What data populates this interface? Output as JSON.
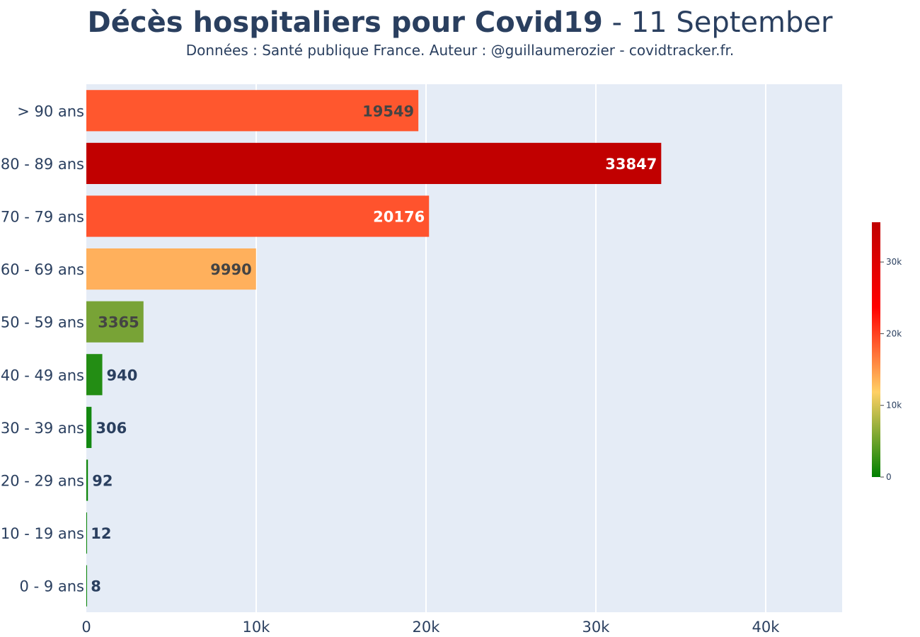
{
  "title": {
    "main": "Décès hospitaliers pour Covid19",
    "date": " - 11 September",
    "subtitle": "Données : Santé publique France. Auteur : @guillaumerozier - covidtracker.fr."
  },
  "colors": {
    "plot_background": "#e5ecf6",
    "grid": "#ffffff",
    "text": "#2a3f5f",
    "colorscale": [
      "#008000",
      "#ffd064",
      "#ff0000",
      "#c00000"
    ]
  },
  "chart_data": {
    "type": "bar",
    "orientation": "horizontal",
    "categories": [
      "> 90 ans",
      "80 - 89 ans",
      "70 - 79 ans",
      "60 - 69 ans",
      "50 - 59 ans",
      "40 - 49 ans",
      "30 - 39 ans",
      "20 - 29 ans",
      "10 - 19 ans",
      "0 - 9 ans"
    ],
    "values": [
      19549,
      33847,
      20176,
      9990,
      3365,
      940,
      306,
      92,
      12,
      8
    ],
    "bar_colors": [
      "#ff572e",
      "#c10000",
      "#ff532d",
      "#ffb05c",
      "#78a336",
      "#238d14",
      "#138811",
      "#0b8408",
      "#018001",
      "#018001"
    ],
    "label_colors": [
      "#444444",
      "#ffffff",
      "#ffffff",
      "#444444",
      "#444444",
      "#2a3f5f",
      "#2a3f5f",
      "#2a3f5f",
      "#2a3f5f",
      "#2a3f5f"
    ],
    "label_inside": [
      true,
      true,
      true,
      true,
      true,
      false,
      false,
      false,
      false,
      false
    ],
    "xlim": [
      0,
      44500
    ],
    "x_ticks": [
      0,
      10000,
      20000,
      30000,
      40000
    ],
    "x_tick_labels": [
      "0",
      "10k",
      "20k",
      "30k",
      "40k"
    ],
    "grid": true,
    "colorbar": {
      "range": [
        0,
        35547
      ],
      "ticks": [
        0,
        10000,
        20000,
        30000
      ],
      "tick_labels": [
        "0",
        "10k",
        "20k",
        "30k"
      ],
      "placement": "right"
    }
  }
}
